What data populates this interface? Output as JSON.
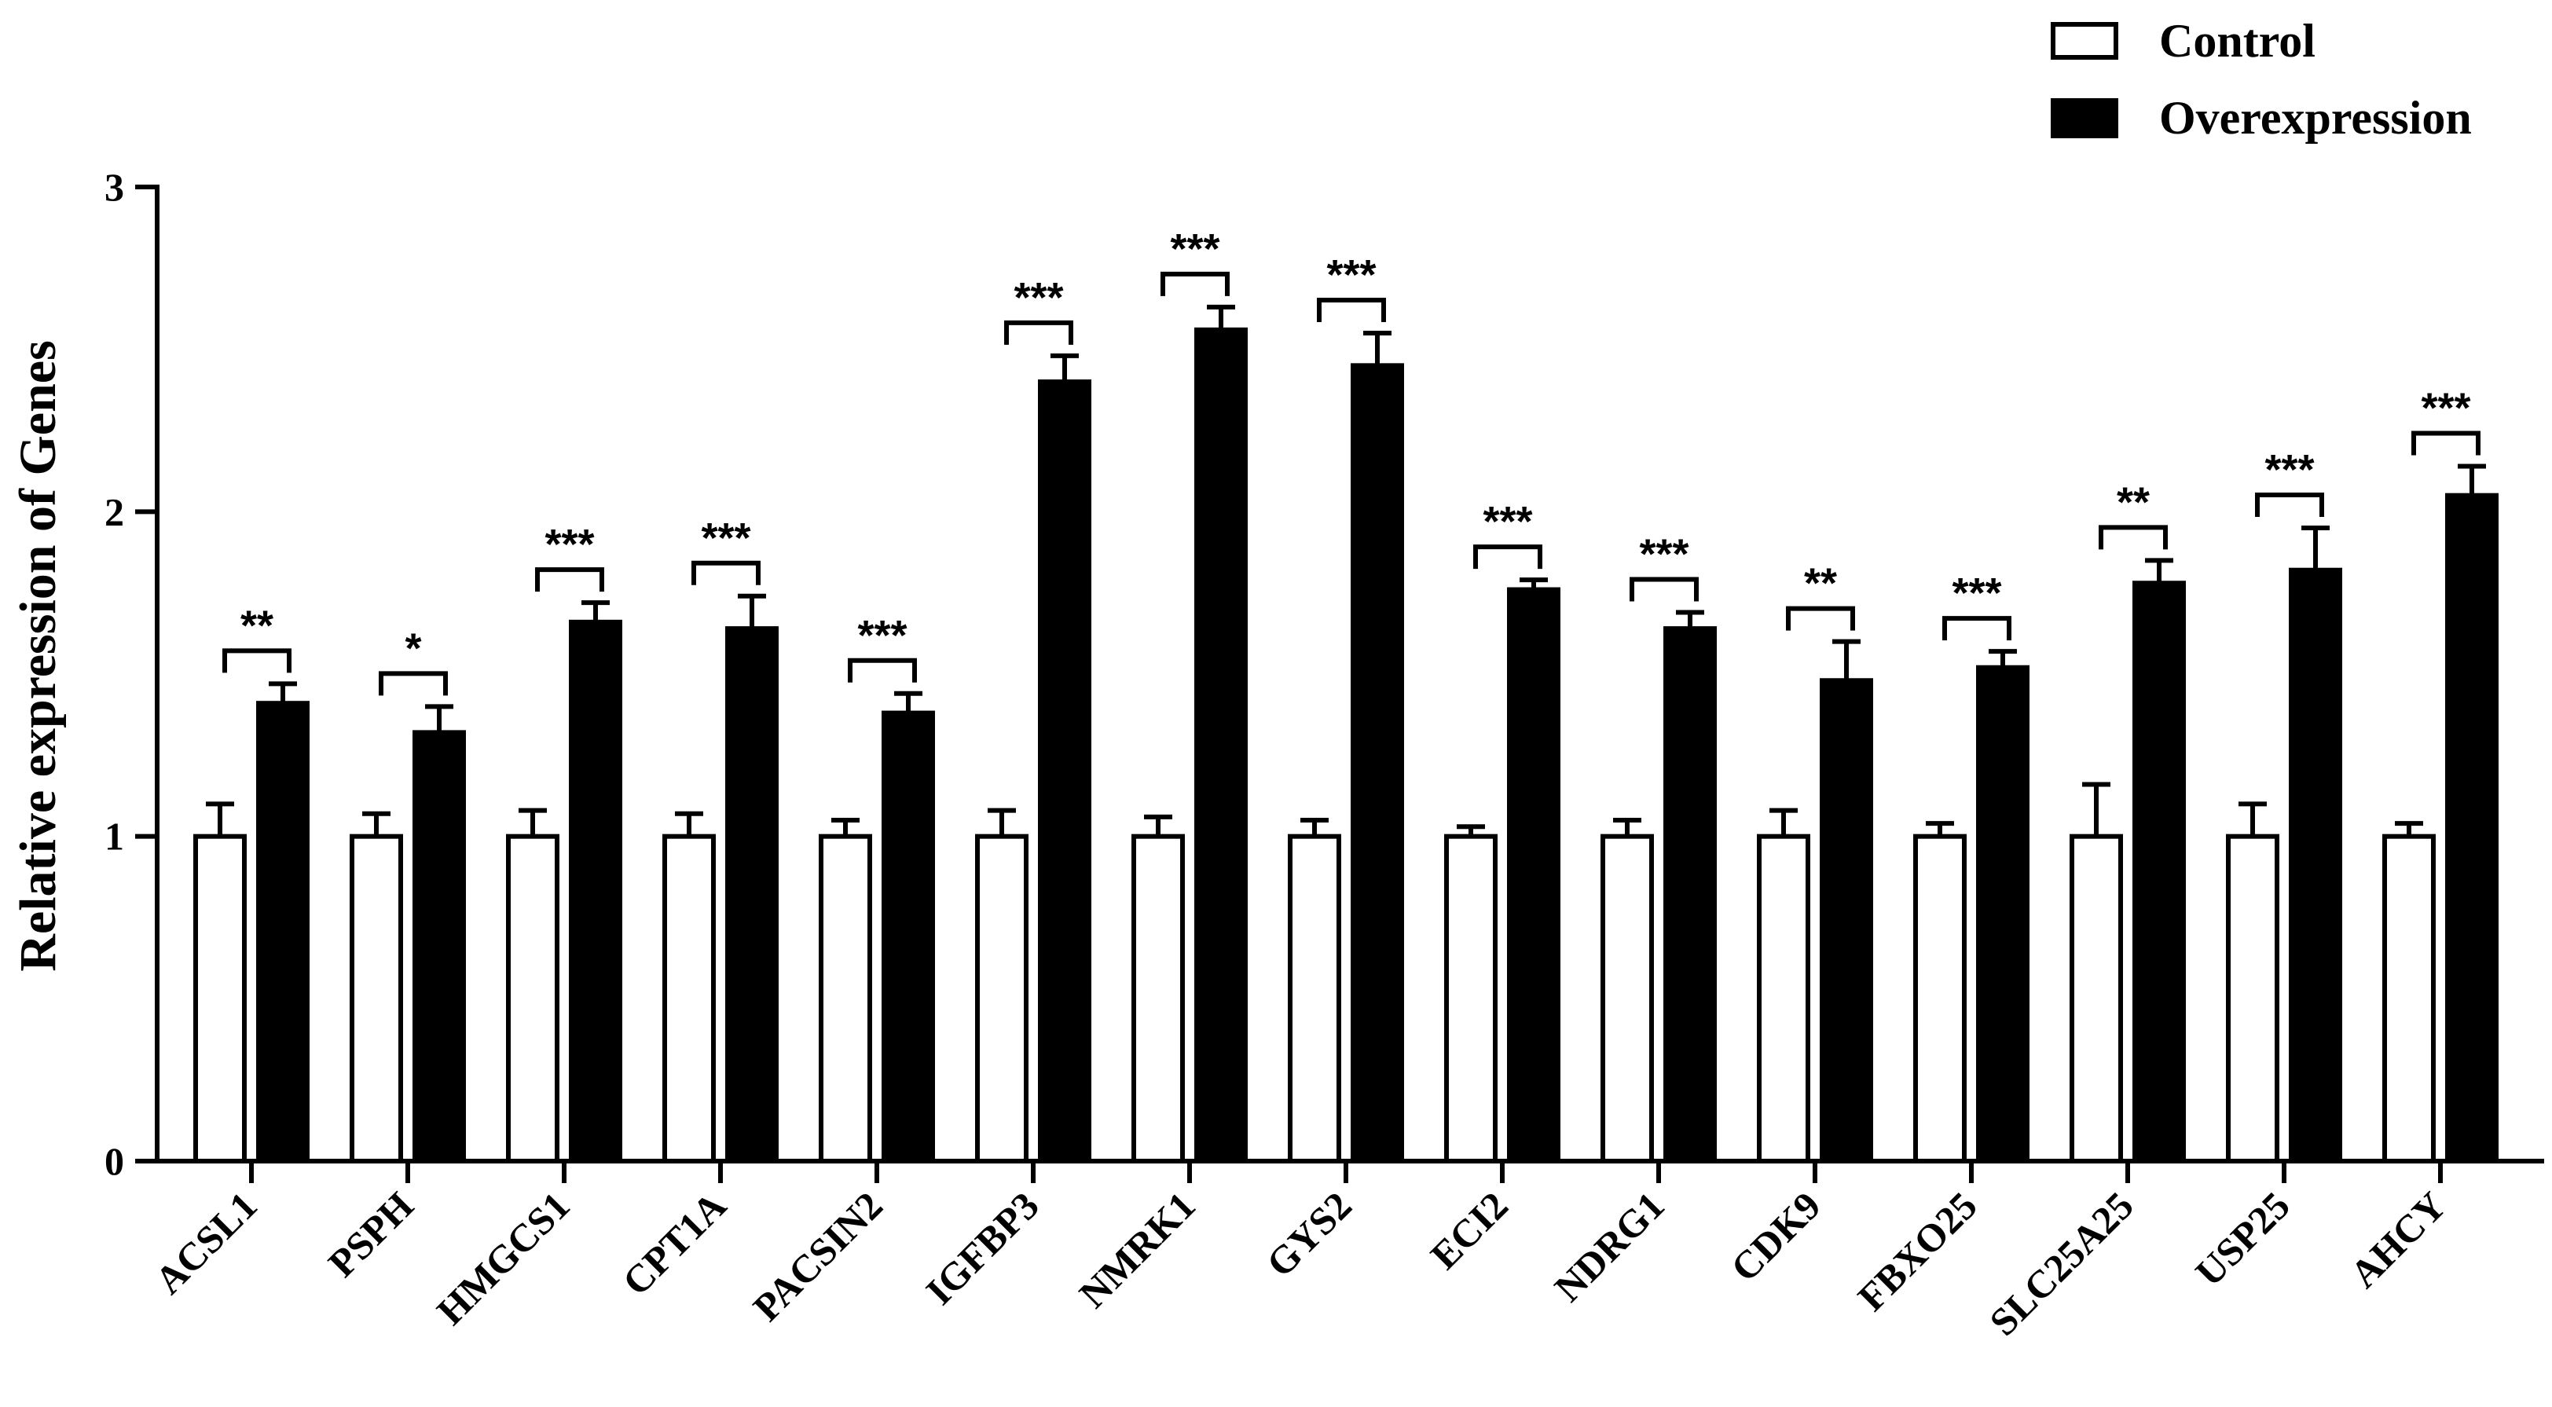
{
  "chart_data": {
    "type": "bar",
    "ylabel": "Relative expression of Genes",
    "xlabel": "",
    "ylim": [
      0,
      3
    ],
    "yticks": [
      "0",
      "1",
      "2",
      "3"
    ],
    "legend_position": "top-right",
    "grid": false,
    "categories": [
      "ACSL1",
      "PSPH",
      "HMGCS1",
      "CPT1A",
      "PACSIN2",
      "IGFBP3",
      "NMRK1",
      "GYS2",
      "ECI2",
      "NDRG1",
      "CDK9",
      "FBXO25",
      "SLC25A25",
      "USP25",
      "AHCY"
    ],
    "series": [
      {
        "name": "Control",
        "color": "#ffffff",
        "values": [
          1,
          1,
          1,
          1,
          1,
          1,
          1,
          1,
          1,
          1,
          1,
          1,
          1,
          1,
          1
        ],
        "errors": [
          0.1,
          0.07,
          0.08,
          0.07,
          0.05,
          0.08,
          0.06,
          0.05,
          0.03,
          0.05,
          0.08,
          0.04,
          0.16,
          0.1,
          0.04
        ]
      },
      {
        "name": "Overexpression",
        "color": "#000000",
        "values": [
          1.41,
          1.32,
          1.66,
          1.64,
          1.38,
          2.4,
          2.56,
          2.45,
          1.76,
          1.64,
          1.48,
          1.52,
          1.78,
          1.82,
          2.05
        ],
        "errors": [
          0.06,
          0.08,
          0.06,
          0.1,
          0.06,
          0.08,
          0.07,
          0.1,
          0.03,
          0.05,
          0.12,
          0.05,
          0.07,
          0.13,
          0.09
        ]
      }
    ],
    "significance": [
      "**",
      "*",
      "***",
      "***",
      "***",
      "***",
      "***",
      "***",
      "***",
      "***",
      "**",
      "***",
      "**",
      "***",
      "***"
    ]
  }
}
